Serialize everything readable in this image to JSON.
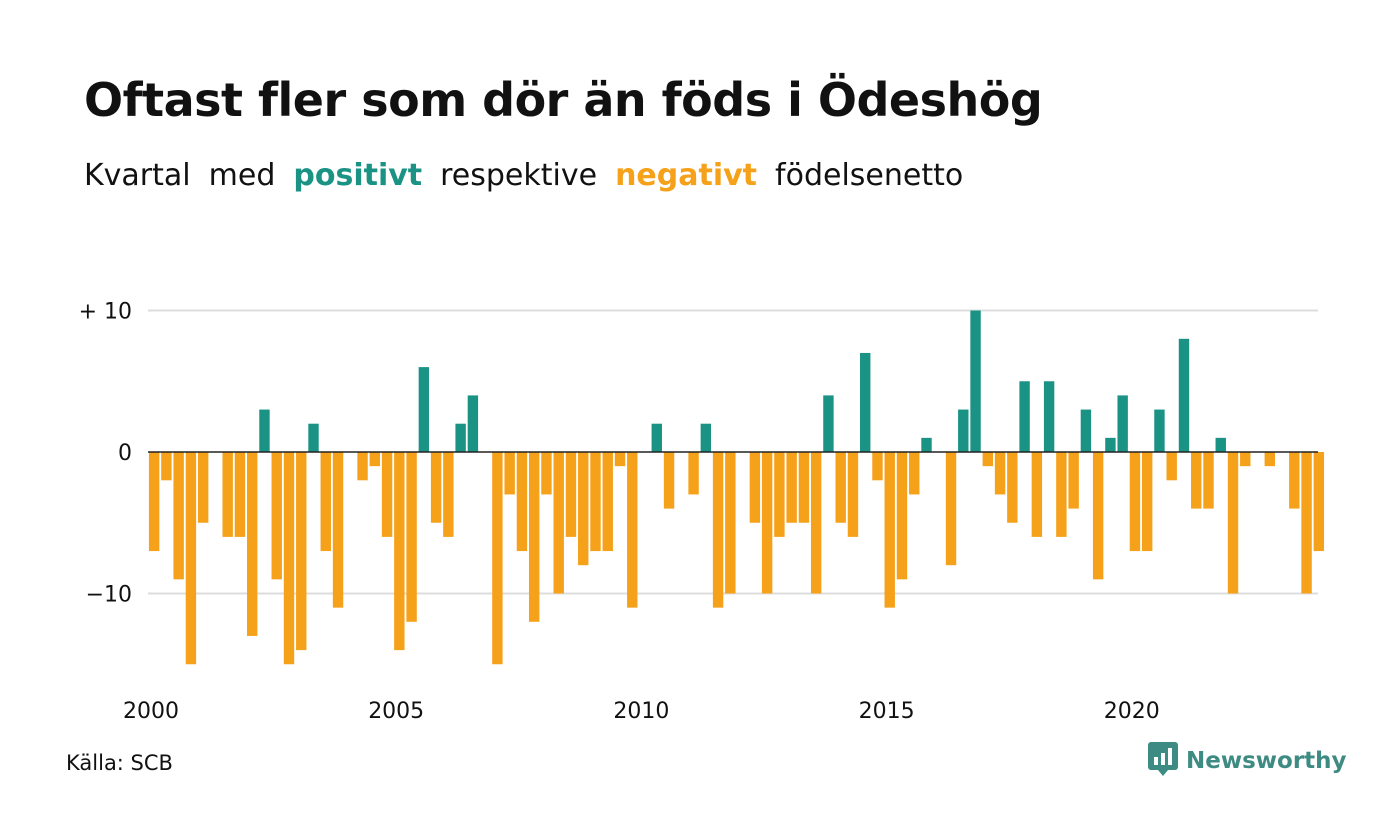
{
  "header": {
    "title": "Oftast fler som dör än föds i Ödeshög",
    "subtitle_parts": {
      "p1": "Kvartal",
      "p2": "med",
      "positive": "positivt",
      "p3": "respektive",
      "negative": "negativt",
      "p4": "födelsenetto"
    }
  },
  "footer": {
    "source": "Källa: SCB",
    "brand": "Newsworthy"
  },
  "colors": {
    "positive": "#1a9385",
    "negative": "#f6a11a",
    "brand": "#3e8b83",
    "grid": "#dddddd",
    "zero_line": "#222222"
  },
  "chart_data": {
    "type": "bar",
    "title": "Oftast fler som dör än föds i Ödeshög",
    "subtitle": "Kvartal med positivt respektive negativt födelsenetto",
    "x_start": 2000,
    "x_step_per_bar": 0.25,
    "x_tick_values": [
      2000,
      2005,
      2010,
      2015,
      2020
    ],
    "x_tick_labels": [
      "2000",
      "2005",
      "2010",
      "2015",
      "2020"
    ],
    "y_tick_values": [
      10,
      0,
      -10
    ],
    "y_tick_labels": [
      "+ 10",
      "0",
      "−10"
    ],
    "ylim": [
      -15,
      10
    ],
    "grid": true,
    "values": [
      -7,
      -2,
      -9,
      -15,
      -5,
      0,
      -6,
      -6,
      -13,
      3,
      -9,
      -15,
      -14,
      2,
      -7,
      -11,
      0,
      -2,
      -1,
      -6,
      -14,
      -12,
      6,
      -5,
      -6,
      2,
      4,
      0,
      -15,
      -3,
      -7,
      -12,
      -3,
      -10,
      -6,
      -8,
      -7,
      -7,
      -1,
      -11,
      0,
      2,
      -4,
      0,
      -3,
      2,
      -11,
      -10,
      0,
      -5,
      -10,
      -6,
      -5,
      -5,
      -10,
      4,
      -5,
      -6,
      7,
      -2,
      -11,
      -9,
      -3,
      1,
      0,
      -8,
      3,
      10,
      -1,
      -3,
      -5,
      5,
      -6,
      5,
      -6,
      -4,
      3,
      -9,
      1,
      4,
      -7,
      -7,
      3,
      -2,
      8,
      -4,
      -4,
      1,
      -10,
      -1,
      0,
      -1,
      0,
      -4,
      -10,
      -7
    ]
  }
}
